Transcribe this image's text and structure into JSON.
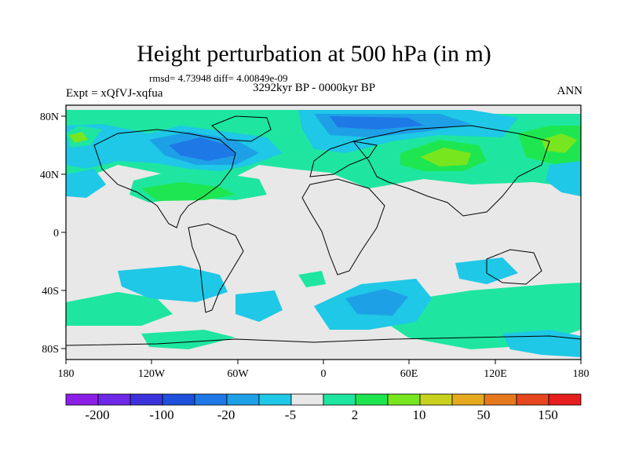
{
  "title": "Height perturbation at 500 hPa (in m)",
  "stats": "rmsd= 4.73948 diff= 4.00849e-09",
  "experiment": "Expt = xQfVJ-xqfua",
  "period": "3292kyr BP - 0000kyr BP",
  "season": "ANN",
  "map": {
    "lat_ticks": [
      "80N",
      "40N",
      "0",
      "40S",
      "80S"
    ],
    "lon_ticks": [
      "180",
      "120W",
      "60W",
      "0",
      "60E",
      "120E",
      "180"
    ],
    "background_color": "#e8e8e8"
  },
  "colorbar": {
    "colors": [
      "#8c1ee6",
      "#6e28e6",
      "#3c32dc",
      "#1e50dc",
      "#1e78e6",
      "#1ea0e6",
      "#1ec8e6",
      "#e8e8e8",
      "#1ee6a0",
      "#1ee650",
      "#78e61e",
      "#c8d21e",
      "#e6aa1e",
      "#e6781e",
      "#e6461e",
      "#e61e1e"
    ],
    "labels": [
      "-200",
      "-100",
      "-20",
      "-5",
      "2",
      "10",
      "50",
      "150"
    ]
  }
}
